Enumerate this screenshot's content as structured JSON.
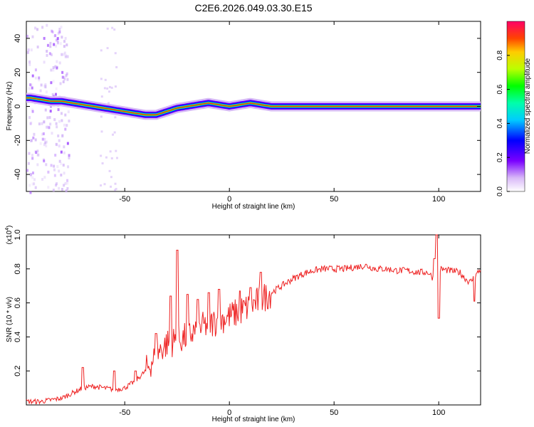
{
  "title": "C2E6.2026.049.03.30.E15",
  "chart_data": [
    {
      "type": "heatmap",
      "xlabel": "Height of straight line (km)",
      "ylabel": "Frequency (Hz)",
      "xlim": [
        -97,
        120
      ],
      "ylim": [
        -50,
        50
      ],
      "xticks": [
        -50,
        0,
        50,
        100
      ],
      "yticks": [
        -40,
        -20,
        0,
        20,
        40
      ],
      "colorbar": {
        "label": "Normalized spectral amplitude",
        "range": [
          0.0,
          1.0
        ],
        "ticks": [
          "0.0",
          "0.2",
          "0.4",
          "0.6",
          "0.8"
        ]
      },
      "ridge": {
        "x": [
          -95,
          -90,
          -85,
          -80,
          -75,
          -70,
          -65,
          -60,
          -55,
          -50,
          -45,
          -40,
          -35,
          -30,
          -25,
          -20,
          -15,
          -10,
          -5,
          0,
          5,
          10,
          15,
          20,
          40,
          60,
          80,
          95,
          100,
          120
        ],
        "freq": [
          5,
          4,
          3,
          3,
          2,
          1,
          0,
          -1,
          -2,
          -3,
          -4,
          -5,
          -5,
          -3,
          -1,
          0,
          1,
          2,
          1,
          0,
          1,
          2,
          1,
          0,
          0,
          0,
          0,
          0,
          0,
          0
        ]
      }
    },
    {
      "type": "line",
      "xlabel": "Height of straight line (km)",
      "ylabel": "SNR (10 * v/v)",
      "yscale_label": "(x10",
      "yscale_exp": "4",
      "xlim": [
        -97,
        120
      ],
      "ylim": [
        0,
        1.0
      ],
      "xticks": [
        -50,
        0,
        50,
        100
      ],
      "yticks": [
        0.2,
        0.4,
        0.6,
        0.8,
        1.0
      ],
      "yticklabels": [
        "0.2",
        "0.4",
        "0.6",
        "0.8",
        "1.0"
      ],
      "color": "#ee2222",
      "series": [
        {
          "name": "SNR",
          "x": [
            -97,
            -90,
            -85,
            -80,
            -75,
            -70,
            -65,
            -60,
            -55,
            -50,
            -45,
            -40,
            -35,
            -30,
            -25,
            -20,
            -15,
            -10,
            -5,
            0,
            5,
            10,
            15,
            20,
            25,
            30,
            35,
            40,
            45,
            50,
            55,
            60,
            65,
            70,
            75,
            80,
            85,
            90,
            95,
            99,
            100,
            105,
            110,
            113,
            115,
            120
          ],
          "y": [
            0.02,
            0.02,
            0.03,
            0.04,
            0.07,
            0.1,
            0.11,
            0.1,
            0.09,
            0.1,
            0.14,
            0.2,
            0.3,
            0.36,
            0.38,
            0.4,
            0.45,
            0.47,
            0.5,
            0.52,
            0.55,
            0.58,
            0.62,
            0.66,
            0.7,
            0.74,
            0.77,
            0.79,
            0.8,
            0.8,
            0.8,
            0.81,
            0.82,
            0.8,
            0.8,
            0.79,
            0.79,
            0.78,
            0.78,
            0.72,
            0.8,
            0.79,
            0.78,
            0.74,
            0.72,
            0.8
          ],
          "spikes": [
            {
              "x": -70,
              "y": 0.22
            },
            {
              "x": -55,
              "y": 0.2
            },
            {
              "x": -45,
              "y": 0.2
            },
            {
              "x": -35,
              "y": 0.42
            },
            {
              "x": -28,
              "y": 0.64
            },
            {
              "x": -25,
              "y": 0.91
            },
            {
              "x": -20,
              "y": 0.65
            },
            {
              "x": -15,
              "y": 0.62
            },
            {
              "x": -10,
              "y": 0.66
            },
            {
              "x": -5,
              "y": 0.68
            },
            {
              "x": 5,
              "y": 0.67
            },
            {
              "x": 10,
              "y": 0.69
            },
            {
              "x": 15,
              "y": 0.78
            },
            {
              "x": 98,
              "y": 0.86
            },
            {
              "x": 99,
              "y": 1.0
            },
            {
              "x": 100,
              "y": 0.51
            },
            {
              "x": 117,
              "y": 0.61
            }
          ]
        }
      ]
    }
  ]
}
